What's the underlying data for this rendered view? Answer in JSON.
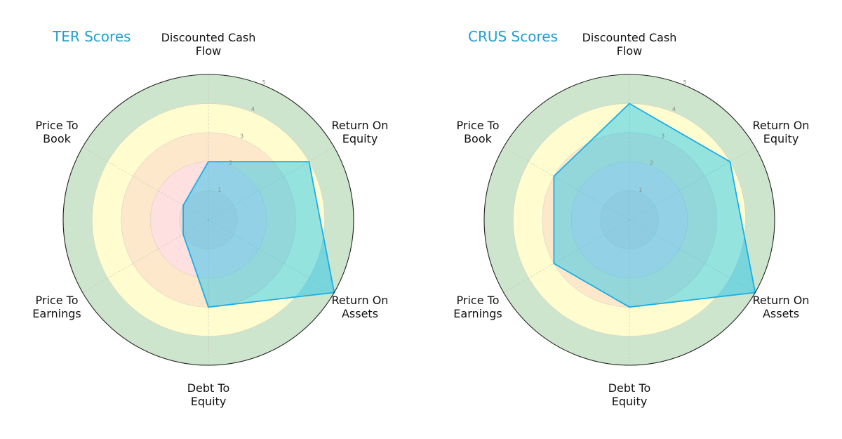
{
  "chart_data": [
    {
      "type": "radar",
      "title": "TER Scores",
      "categories": [
        "Discounted Cash Flow",
        "Return On Equity",
        "Return On Assets",
        "Debt To Equity",
        "Price To Earnings",
        "Price To Book"
      ],
      "values": [
        2,
        4,
        5,
        3,
        1,
        1
      ],
      "rlim": [
        0,
        5
      ],
      "rticks": [
        1,
        2,
        3,
        4,
        5
      ],
      "band_colors": [
        "#f9d6d6",
        "#fde0df",
        "#fde8cc",
        "#fffdd0",
        "#cde5cc"
      ],
      "fill_color": "#00bff0",
      "line_color": "#1aaee6"
    },
    {
      "type": "radar",
      "title": "CRUS Scores",
      "categories": [
        "Discounted Cash Flow",
        "Return On Equity",
        "Return On Assets",
        "Debt To Equity",
        "Price To Earnings",
        "Price To Book"
      ],
      "values": [
        4,
        4,
        5,
        3,
        3,
        3
      ],
      "rlim": [
        0,
        5
      ],
      "rticks": [
        1,
        2,
        3,
        4,
        5
      ],
      "band_colors": [
        "#f9d6d6",
        "#fde0df",
        "#fde8cc",
        "#fffdd0",
        "#cde5cc"
      ],
      "fill_color": "#00bff0",
      "line_color": "#1aaee6"
    }
  ],
  "labels": {
    "dcf": "Discounted Cash\nFlow",
    "roe": "Return On\nEquity",
    "roa": "Return On\nAssets",
    "dte": "Debt To\nEquity",
    "pe": "Price To\nEarnings",
    "pb": "Price To\nBook"
  },
  "titles": [
    "TER Scores",
    "CRUS Scores"
  ]
}
